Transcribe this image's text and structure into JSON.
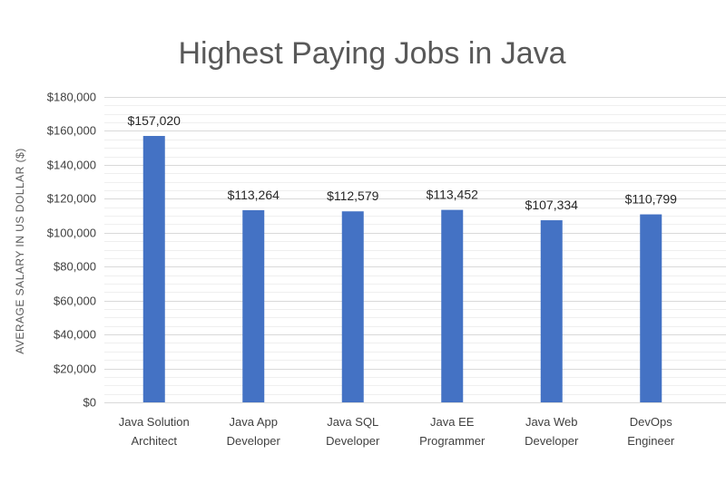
{
  "chart_data": {
    "type": "bar",
    "title": "Highest Paying Jobs in Java",
    "ylabel": "AVERAGE SALARY IN US DOLLAR ($)",
    "xlabel": "",
    "ylim": [
      0,
      180000
    ],
    "yticks": [
      {
        "value": 0,
        "label": "$0"
      },
      {
        "value": 20000,
        "label": "$20,000"
      },
      {
        "value": 40000,
        "label": "$40,000"
      },
      {
        "value": 60000,
        "label": "$60,000"
      },
      {
        "value": 80000,
        "label": "$80,000"
      },
      {
        "value": 100000,
        "label": "$100,000"
      },
      {
        "value": 120000,
        "label": "$120,000"
      },
      {
        "value": 140000,
        "label": "$140,000"
      },
      {
        "value": 160000,
        "label": "$160,000"
      },
      {
        "value": 180000,
        "label": "$180,000"
      }
    ],
    "categories": [
      [
        "Java Solution",
        "Architect"
      ],
      [
        "Java App",
        "Developer"
      ],
      [
        "Java SQL",
        "Developer"
      ],
      [
        "Java EE",
        "Programmer"
      ],
      [
        "Java Web",
        "Developer"
      ],
      [
        "DevOps",
        "Engineer"
      ]
    ],
    "values": [
      157020,
      113264,
      112579,
      113452,
      107334,
      110799
    ],
    "data_labels": [
      "$157,020",
      "$113,264",
      "$112,579",
      "$113,452",
      "$107,334",
      "$110,799"
    ],
    "grid": true,
    "legend": "none",
    "colors": {
      "bar": "#4472c4"
    }
  }
}
